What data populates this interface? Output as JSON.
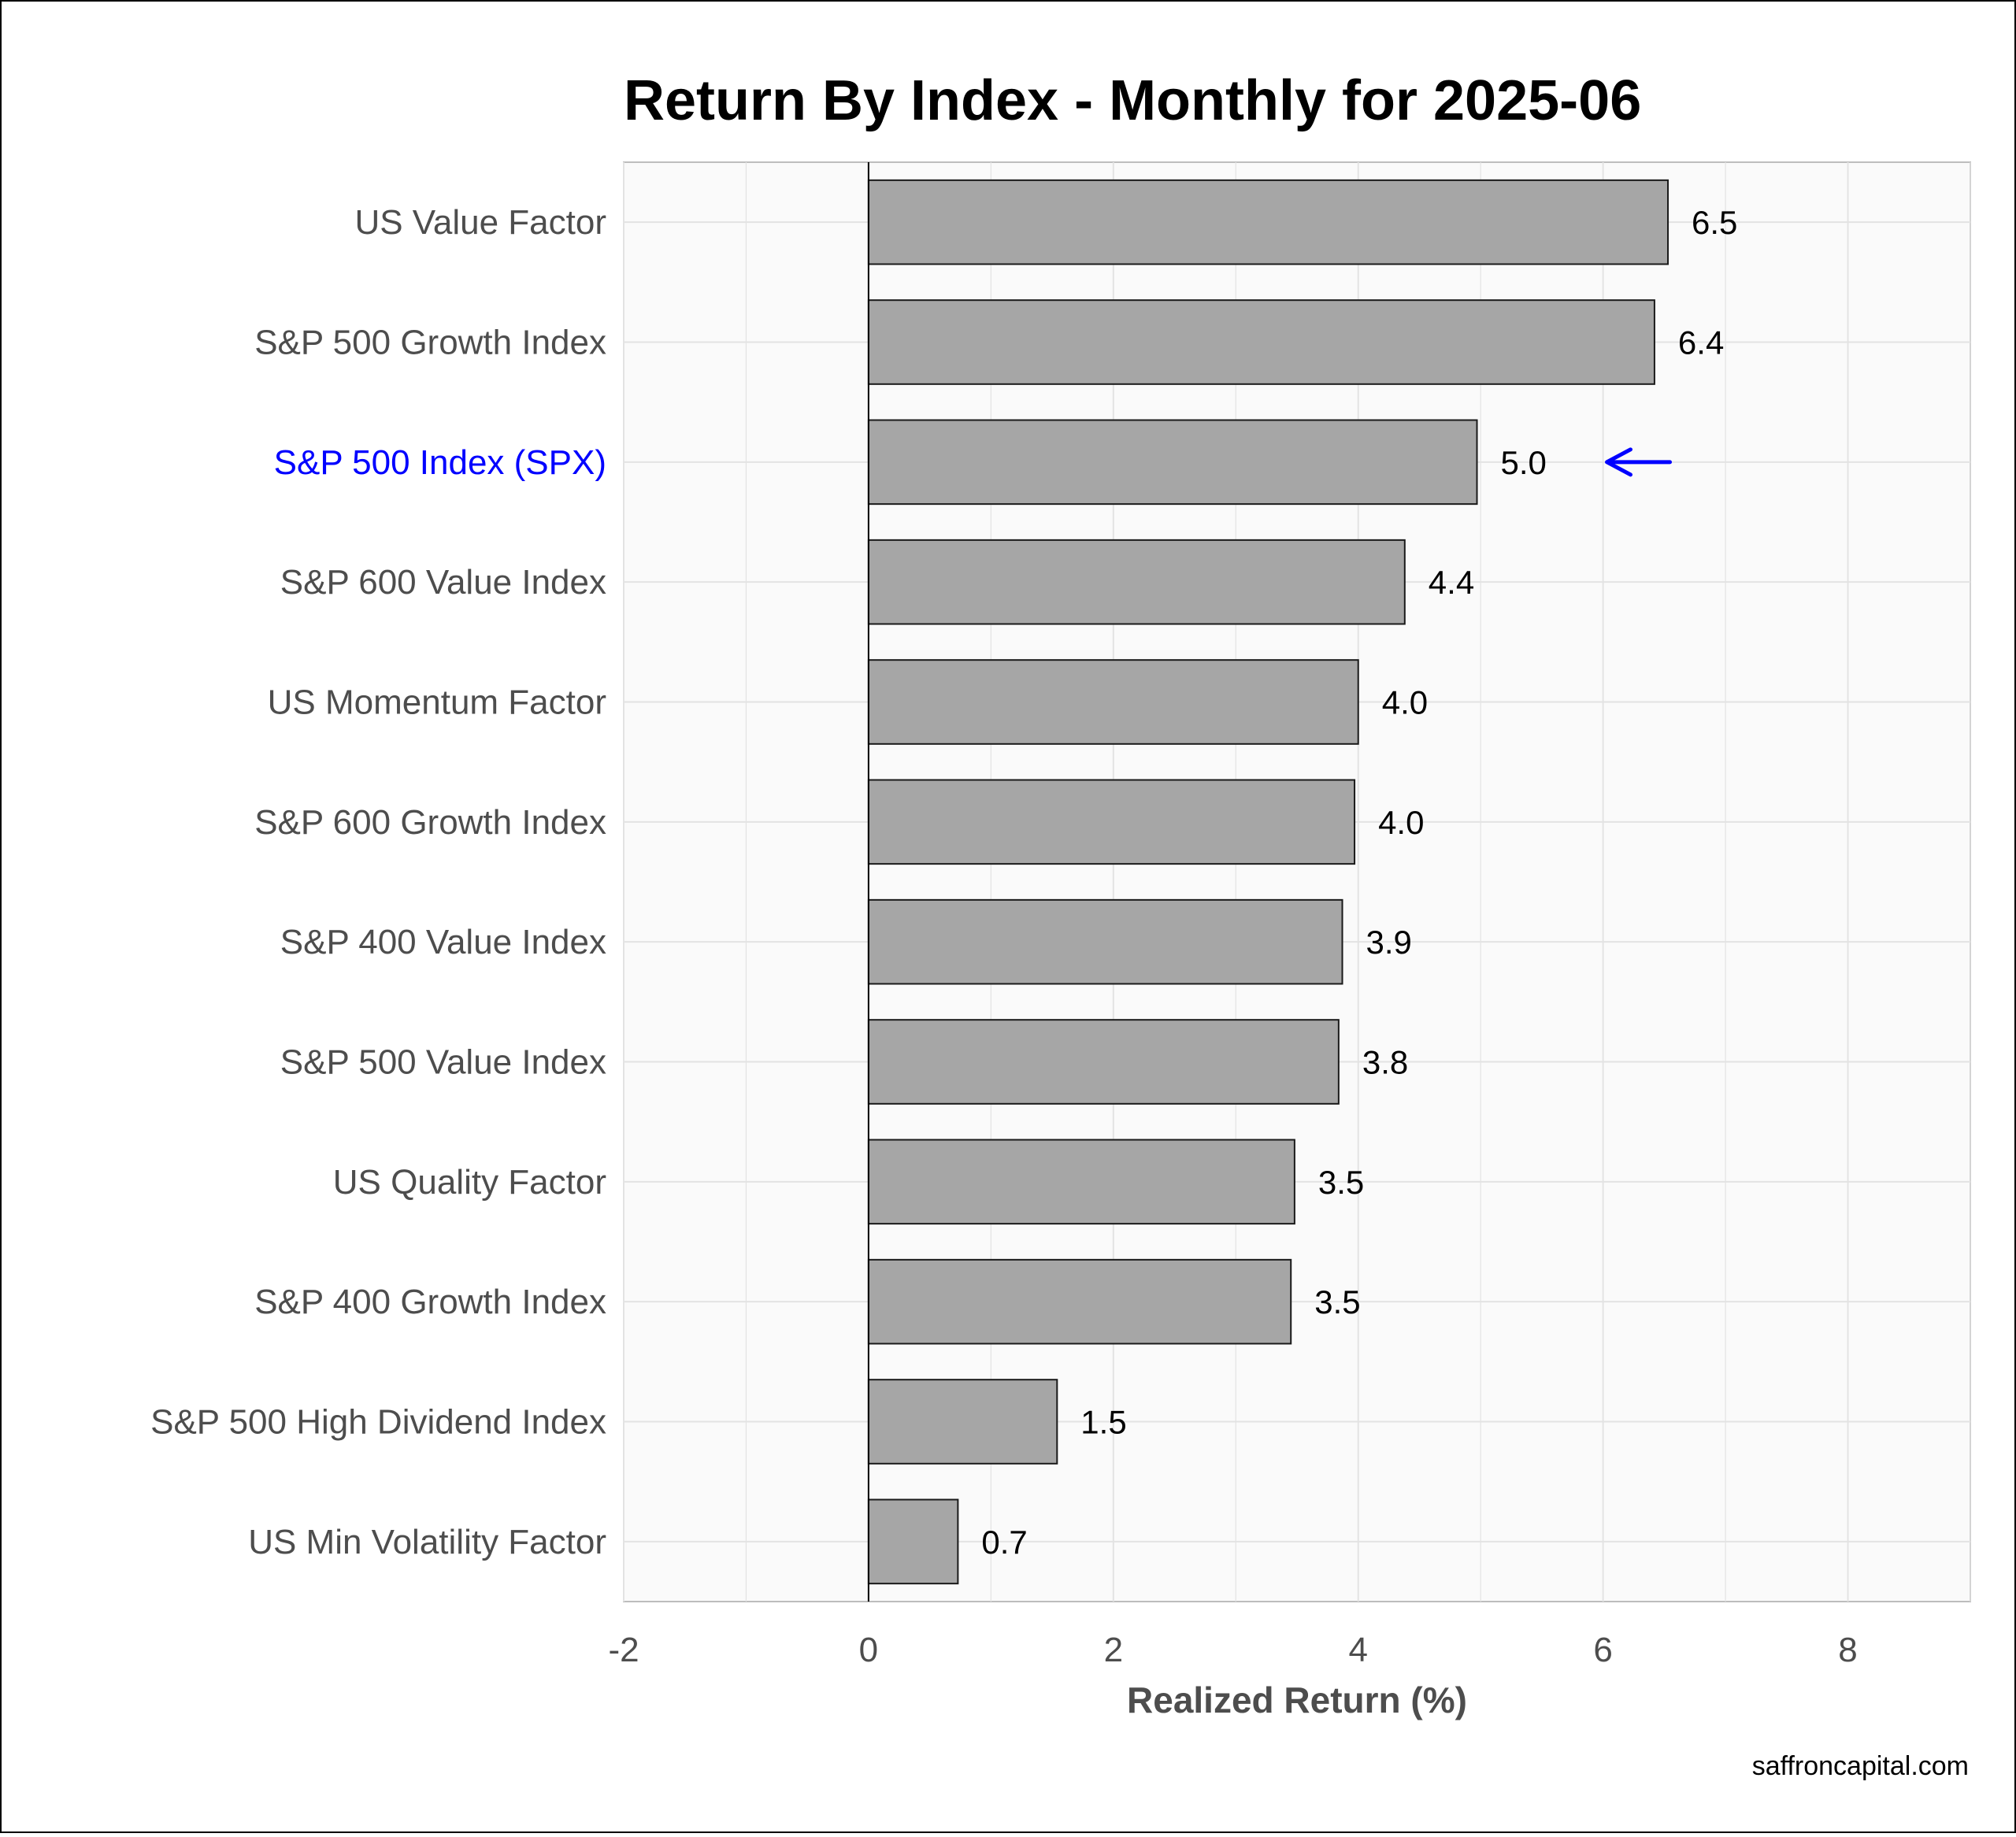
{
  "chart_data": {
    "type": "bar",
    "orientation": "horizontal",
    "title": "Return By Index - Monthly for 2025-06",
    "xlabel": "Realized Return (%)",
    "ylabel": "",
    "xlim": [
      -2,
      9
    ],
    "xticks": [
      -2,
      0,
      2,
      4,
      6,
      8
    ],
    "grid": true,
    "categories": [
      "US Value Factor",
      "S&P 500 Growth Index",
      "S&P 500 Index (SPX)",
      "S&P 600 Value Index",
      "US Momentum Factor",
      "S&P 600 Growth Index",
      "S&P 400 Value Index",
      "S&P 500 Value Index",
      "US Quality Factor",
      "S&P 400 Growth Index",
      "S&P 500 High Dividend Index",
      "US Min Volatility Factor"
    ],
    "values": [
      6.53,
      6.42,
      4.97,
      4.38,
      4.0,
      3.97,
      3.87,
      3.84,
      3.48,
      3.45,
      1.54,
      0.73
    ],
    "value_labels": [
      "6.5",
      "6.4",
      "5.0",
      "4.4",
      "4.0",
      "4.0",
      "3.9",
      "3.8",
      "3.5",
      "3.5",
      "1.5",
      "0.7"
    ],
    "highlight_category": "S&P 500 Index (SPX)",
    "highlight_marker": "arrow",
    "colors": {
      "bar_fill": "#a6a6a6",
      "bar_stroke": "#1a1a1a",
      "highlight": "#0000ff",
      "panel_background": "#fafafa",
      "grid": "#e3e3e3"
    }
  },
  "source_text": "saffroncapital.com"
}
